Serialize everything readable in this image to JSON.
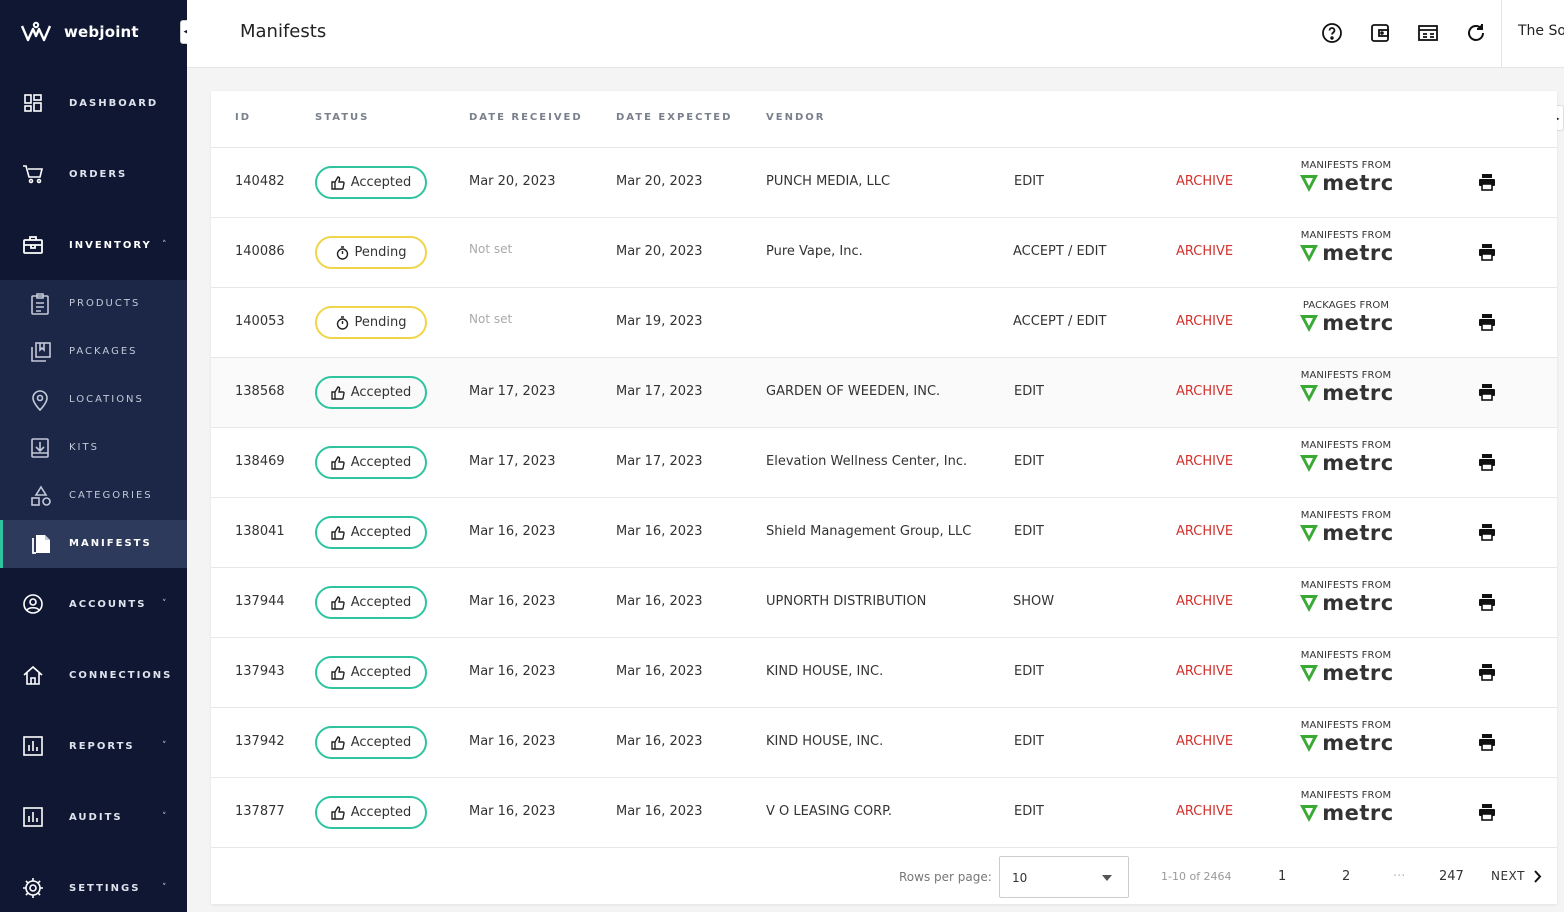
{
  "brand": {
    "name": "webjoint"
  },
  "sidebar": {
    "items": [
      {
        "label": "DASHBOARD",
        "icon": "dashboard-icon"
      },
      {
        "label": "ORDERS",
        "icon": "cart-icon"
      },
      {
        "label": "INVENTORY",
        "icon": "toolbox-icon",
        "expanded": true
      },
      {
        "label": "ACCOUNTS",
        "icon": "account-icon"
      },
      {
        "label": "CONNECTIONS",
        "icon": "home-icon"
      },
      {
        "label": "REPORTS",
        "icon": "chart-icon"
      },
      {
        "label": "AUDITS",
        "icon": "chart-icon"
      },
      {
        "label": "SETTINGS",
        "icon": "gear-icon"
      }
    ],
    "inventory_items": [
      {
        "label": "PRODUCTS",
        "icon": "clipboard-icon"
      },
      {
        "label": "PACKAGES",
        "icon": "packages-icon"
      },
      {
        "label": "LOCATIONS",
        "icon": "location-pin-icon"
      },
      {
        "label": "KITS",
        "icon": "kit-icon"
      },
      {
        "label": "CATEGORIES",
        "icon": "shapes-icon"
      },
      {
        "label": "MANIFESTS",
        "icon": "documents-icon",
        "active": true
      }
    ]
  },
  "header": {
    "title": "Manifests",
    "org": "The So"
  },
  "table": {
    "columns": [
      "ID",
      "STATUS",
      "DATE RECEIVED",
      "DATE EXPECTED",
      "VENDOR"
    ],
    "rows": [
      {
        "id": "140482",
        "status": "Accepted",
        "received": "Mar 20, 2023",
        "expected": "Mar 20, 2023",
        "vendor": "PUNCH MEDIA, LLC",
        "action": "EDIT",
        "archive": "ARCHIVE",
        "source": "MANIFESTS FROM"
      },
      {
        "id": "140086",
        "status": "Pending",
        "received": "Not set",
        "expected": "Mar 20, 2023",
        "vendor": "Pure Vape, Inc.",
        "action": "ACCEPT / EDIT",
        "archive": "ARCHIVE",
        "source": "MANIFESTS FROM"
      },
      {
        "id": "140053",
        "status": "Pending",
        "received": "Not set",
        "expected": "Mar 19, 2023",
        "vendor": "",
        "action": "ACCEPT / EDIT",
        "archive": "ARCHIVE",
        "source": "PACKAGES FROM"
      },
      {
        "id": "138568",
        "status": "Accepted",
        "received": "Mar 17, 2023",
        "expected": "Mar 17, 2023",
        "vendor": "GARDEN OF WEEDEN, INC.",
        "action": "EDIT",
        "archive": "ARCHIVE",
        "source": "MANIFESTS FROM"
      },
      {
        "id": "138469",
        "status": "Accepted",
        "received": "Mar 17, 2023",
        "expected": "Mar 17, 2023",
        "vendor": "Elevation Wellness Center, Inc.",
        "action": "EDIT",
        "archive": "ARCHIVE",
        "source": "MANIFESTS FROM"
      },
      {
        "id": "138041",
        "status": "Accepted",
        "received": "Mar 16, 2023",
        "expected": "Mar 16, 2023",
        "vendor": "Shield Management Group, LLC",
        "action": "EDIT",
        "archive": "ARCHIVE",
        "source": "MANIFESTS FROM"
      },
      {
        "id": "137944",
        "status": "Accepted",
        "received": "Mar 16, 2023",
        "expected": "Mar 16, 2023",
        "vendor": "UPNORTH DISTRIBUTION",
        "action": "SHOW",
        "archive": "ARCHIVE",
        "source": "MANIFESTS FROM"
      },
      {
        "id": "137943",
        "status": "Accepted",
        "received": "Mar 16, 2023",
        "expected": "Mar 16, 2023",
        "vendor": "KIND HOUSE, INC.",
        "action": "EDIT",
        "archive": "ARCHIVE",
        "source": "MANIFESTS FROM"
      },
      {
        "id": "137942",
        "status": "Accepted",
        "received": "Mar 16, 2023",
        "expected": "Mar 16, 2023",
        "vendor": "KIND HOUSE, INC.",
        "action": "EDIT",
        "archive": "ARCHIVE",
        "source": "MANIFESTS FROM"
      },
      {
        "id": "137877",
        "status": "Accepted",
        "received": "Mar 16, 2023",
        "expected": "Mar 16, 2023",
        "vendor": "V O LEASING CORP.",
        "action": "EDIT",
        "archive": "ARCHIVE",
        "source": "MANIFESTS FROM"
      }
    ],
    "metrc_word": "metrc"
  },
  "pagination": {
    "rows_label": "Rows per page:",
    "rows_value": "10",
    "range": "1-10 of 2464",
    "pages": [
      "1",
      "2",
      "...",
      "247"
    ],
    "next": "NEXT"
  },
  "colors": {
    "sidebar": "#0f1733",
    "accepted": "#2ec4a0",
    "pending": "#f0d44a",
    "archive": "#d0312d",
    "metrc_green": "#3aa935"
  }
}
